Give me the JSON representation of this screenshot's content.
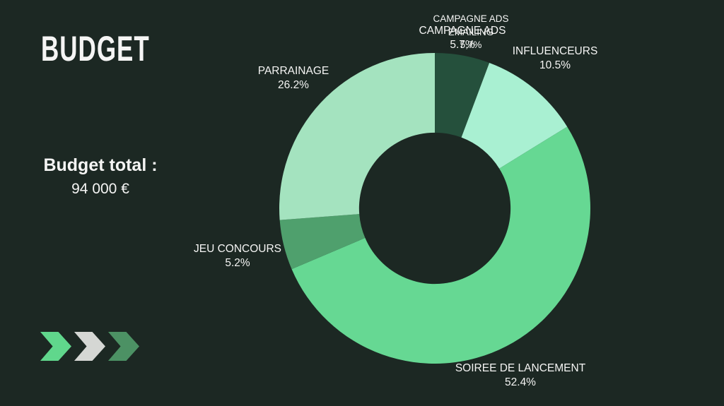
{
  "page": {
    "background": "#1C2823",
    "text_color": "#F5F5F4"
  },
  "header": {
    "title": "BUDGET"
  },
  "summary": {
    "label": "Budget total :",
    "value": "94 000 €"
  },
  "chart_data": {
    "type": "pie",
    "subtype": "donut",
    "title": "BUDGET",
    "unit": "%",
    "start_angle_deg": 0,
    "direction": "clockwise",
    "inner_radius_ratio": 0.487,
    "legend_position": "callouts-around-ring",
    "slices": [
      {
        "label": "CAMPAGNE ADS",
        "value": 5.7,
        "display": "5.7%",
        "color": "#25503C"
      },
      {
        "label": "INFLUENCEURS",
        "value": 10.5,
        "display": "10.5%",
        "color": "#A9F0D2"
      },
      {
        "label": "SOIREE DE LANCEMENT",
        "value": 52.4,
        "display": "52.4%",
        "color": "#66D893"
      },
      {
        "label": "JEU CONCOURS",
        "value": 5.2,
        "display": "5.2%",
        "color": "#4FA06D"
      },
      {
        "label": "PARRAINAGE",
        "value": 26.2,
        "display": "26.2%",
        "color": "#A4E3BF"
      }
    ]
  },
  "callouts": {
    "campagne_ads": {
      "name": "CAMPAGNE ADS",
      "pct": "5.7%"
    },
    "campagne_ads_emailing": {
      "name": "CAMPAGNE ADS",
      "name2": "EMAILING",
      "pct": "5,7%"
    },
    "influenceurs": {
      "name": "INFLUENCEURS",
      "pct": "10.5%"
    },
    "parrainage": {
      "name": "PARRAINAGE",
      "pct": "26.2%"
    },
    "jeu_concours": {
      "name": "JEU CONCOURS",
      "pct": "5.2%"
    },
    "soiree_de_lancement": {
      "name": "SOIREE DE LANCEMENT",
      "pct": "52.4%"
    }
  },
  "decor": {
    "chevron_colors": [
      "#60D78C",
      "#D5D7D4",
      "#4C9164"
    ]
  }
}
